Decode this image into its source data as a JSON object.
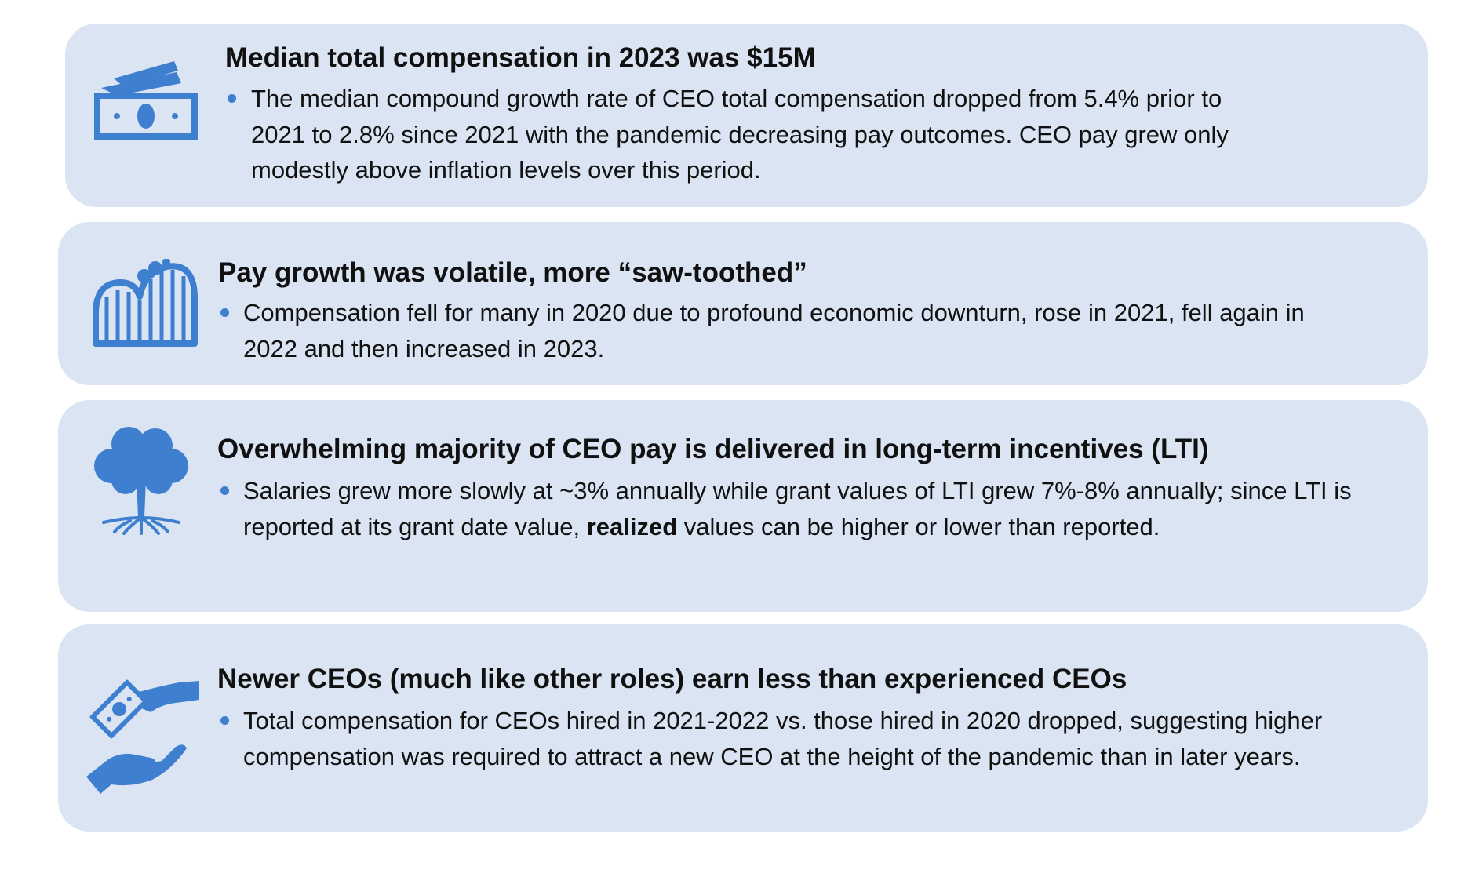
{
  "accent_color": "#3f7fcf",
  "card_color": "#dae4f3",
  "items": [
    {
      "icon": "money-bills-icon",
      "title": "Median total compensation in 2023 was $15M",
      "bullet": "The median compound growth rate of CEO total compensation dropped from 5.4% prior to 2021 to 2.8% since 2021 with the pandemic decreasing pay outcomes. CEO pay grew only modestly above inflation levels over this period."
    },
    {
      "icon": "roller-coaster-icon",
      "title": "Pay growth was volatile, more “saw-toothed”",
      "bullet": "Compensation fell for many in 2020 due to profound economic downturn, rose in 2021, fell again in 2022 and then increased in 2023."
    },
    {
      "icon": "tree-roots-icon",
      "title": "Overwhelming majority of CEO pay is delivered in long-term incentives (LTI)",
      "bullet_before": "Salaries grew more slowly at ~3% annually while grant values of LTI grew 7%-8% annually; since LTI is reported at its grant date value, ",
      "bullet_bold": "realized",
      "bullet_after": " values can be higher or lower than reported."
    },
    {
      "icon": "hand-giving-money-icon",
      "title": "Newer CEOs (much like other roles) earn less than experienced CEOs",
      "bullet": "Total compensation for CEOs hired in 2021-2022 vs. those hired in 2020 dropped, suggesting higher compensation was required to attract a new CEO at the height of the pandemic than in later years."
    }
  ]
}
